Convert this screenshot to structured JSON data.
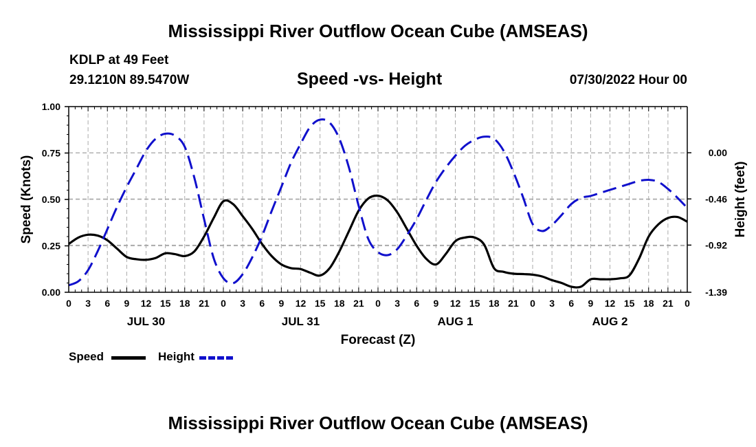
{
  "header": {
    "title": "Mississippi River Outflow Ocean Cube (AMSEAS)",
    "station": "KDLP at 49 Feet",
    "coords": "29.1210N  89.5470W",
    "chart_title": "Speed -vs- Height",
    "datetime": "07/30/2022 Hour 00"
  },
  "footer": {
    "title": "Mississippi River Outflow Ocean Cube (AMSEAS)"
  },
  "legend": {
    "speed_label": "Speed",
    "height_label": "Height",
    "speed_color": "#000000",
    "height_color": "#1010cc"
  },
  "chart_data": {
    "type": "line",
    "title": "Speed -vs- Height",
    "xlabel": "Forecast (Z)",
    "ylabel_left": "Speed (Knots)",
    "ylabel_right": "Height (feet)",
    "xlim": [
      0,
      96
    ],
    "ylim_left": [
      0,
      1
    ],
    "ylim_right": [
      -1.39,
      0.46
    ],
    "left_ticks": [
      "0.00",
      "0.25",
      "0.50",
      "0.75",
      "1.00"
    ],
    "left_tick_values": [
      0,
      0.25,
      0.5,
      0.75,
      1.0
    ],
    "right_ticks": [
      "-1.39",
      "-0.92",
      "-0.46",
      "0.00"
    ],
    "right_tick_values": [
      -1.39,
      -0.92,
      -0.46,
      0.0
    ],
    "x_ticks": [
      "0",
      "3",
      "6",
      "9",
      "12",
      "15",
      "18",
      "21",
      "0",
      "3",
      "6",
      "9",
      "12",
      "15",
      "18",
      "21",
      "0",
      "3",
      "6",
      "9",
      "12",
      "15",
      "18",
      "21",
      "0",
      "3",
      "6",
      "9",
      "12",
      "15",
      "18",
      "21",
      "0"
    ],
    "x_tick_hours": [
      0,
      3,
      6,
      9,
      12,
      15,
      18,
      21,
      24,
      27,
      30,
      33,
      36,
      39,
      42,
      45,
      48,
      51,
      54,
      57,
      60,
      63,
      66,
      69,
      72,
      75,
      78,
      81,
      84,
      87,
      90,
      93,
      96
    ],
    "date_labels": [
      "JUL 30",
      "JUL 31",
      "AUG 1",
      "AUG 2"
    ],
    "date_label_hours": [
      12,
      36,
      60,
      84
    ],
    "grid": true,
    "series": [
      {
        "name": "Speed",
        "axis": "left",
        "style": "solid",
        "hours": [
          0,
          1.5,
          3,
          4.5,
          6,
          7.5,
          9,
          10.5,
          12,
          13.5,
          15,
          16.5,
          18,
          19.5,
          21,
          22.5,
          24,
          25.5,
          27,
          28.5,
          30,
          31.5,
          33,
          34.5,
          36,
          37.5,
          39,
          40.5,
          42,
          43.5,
          45,
          46.5,
          48,
          49.5,
          51,
          52.5,
          54,
          55.5,
          57,
          58.5,
          60,
          61.5,
          63,
          64.5,
          66,
          67.5,
          69,
          70.5,
          72,
          73.5,
          75,
          76.5,
          78,
          79.5,
          81,
          82.5,
          84,
          85.5,
          87,
          88.5,
          90,
          91.5,
          93,
          94.5,
          96
        ],
        "values": [
          0.26,
          0.295,
          0.31,
          0.305,
          0.28,
          0.235,
          0.19,
          0.178,
          0.175,
          0.185,
          0.21,
          0.205,
          0.195,
          0.22,
          0.3,
          0.4,
          0.49,
          0.475,
          0.41,
          0.34,
          0.26,
          0.195,
          0.15,
          0.13,
          0.125,
          0.105,
          0.09,
          0.13,
          0.22,
          0.33,
          0.44,
          0.505,
          0.52,
          0.495,
          0.43,
          0.34,
          0.25,
          0.18,
          0.15,
          0.205,
          0.275,
          0.295,
          0.295,
          0.255,
          0.13,
          0.11,
          0.1,
          0.098,
          0.095,
          0.085,
          0.065,
          0.05,
          0.03,
          0.03,
          0.07,
          0.07,
          0.07,
          0.075,
          0.09,
          0.18,
          0.3,
          0.365,
          0.4,
          0.405,
          0.38
        ]
      },
      {
        "name": "Height",
        "axis": "right",
        "style": "dashed",
        "hours": [
          0,
          1.5,
          3,
          4.5,
          6,
          7.5,
          9,
          10.5,
          12,
          13.5,
          15,
          16.5,
          18,
          19.5,
          21,
          22.5,
          24,
          25.5,
          27,
          28.5,
          30,
          31.5,
          33,
          34.5,
          36,
          37.5,
          39,
          40.5,
          42,
          43.5,
          45,
          46.5,
          48,
          49.5,
          51,
          52.5,
          54,
          55.5,
          57,
          58.5,
          60,
          61.5,
          63,
          64.5,
          66,
          67.5,
          69,
          70.5,
          72,
          73.5,
          75,
          76.5,
          78,
          79.5,
          81,
          82.5,
          84,
          85.5,
          87,
          88.5,
          90,
          91.5,
          93,
          94.5,
          96
        ],
        "values": [
          -1.32,
          -1.28,
          -1.17,
          -0.98,
          -0.76,
          -0.54,
          -0.34,
          -0.16,
          0.02,
          0.14,
          0.19,
          0.17,
          0.06,
          -0.25,
          -0.66,
          -1.05,
          -1.25,
          -1.3,
          -1.21,
          -1.04,
          -0.83,
          -0.58,
          -0.34,
          -0.1,
          0.09,
          0.26,
          0.33,
          0.3,
          0.14,
          -0.15,
          -0.53,
          -0.86,
          -0.99,
          -1.02,
          -0.96,
          -0.82,
          -0.66,
          -0.47,
          -0.29,
          -0.15,
          -0.03,
          0.07,
          0.13,
          0.16,
          0.14,
          0.02,
          -0.19,
          -0.44,
          -0.71,
          -0.78,
          -0.72,
          -0.62,
          -0.51,
          -0.45,
          -0.43,
          -0.4,
          -0.37,
          -0.34,
          -0.31,
          -0.28,
          -0.27,
          -0.29,
          -0.36,
          -0.45,
          -0.55
        ]
      }
    ]
  }
}
